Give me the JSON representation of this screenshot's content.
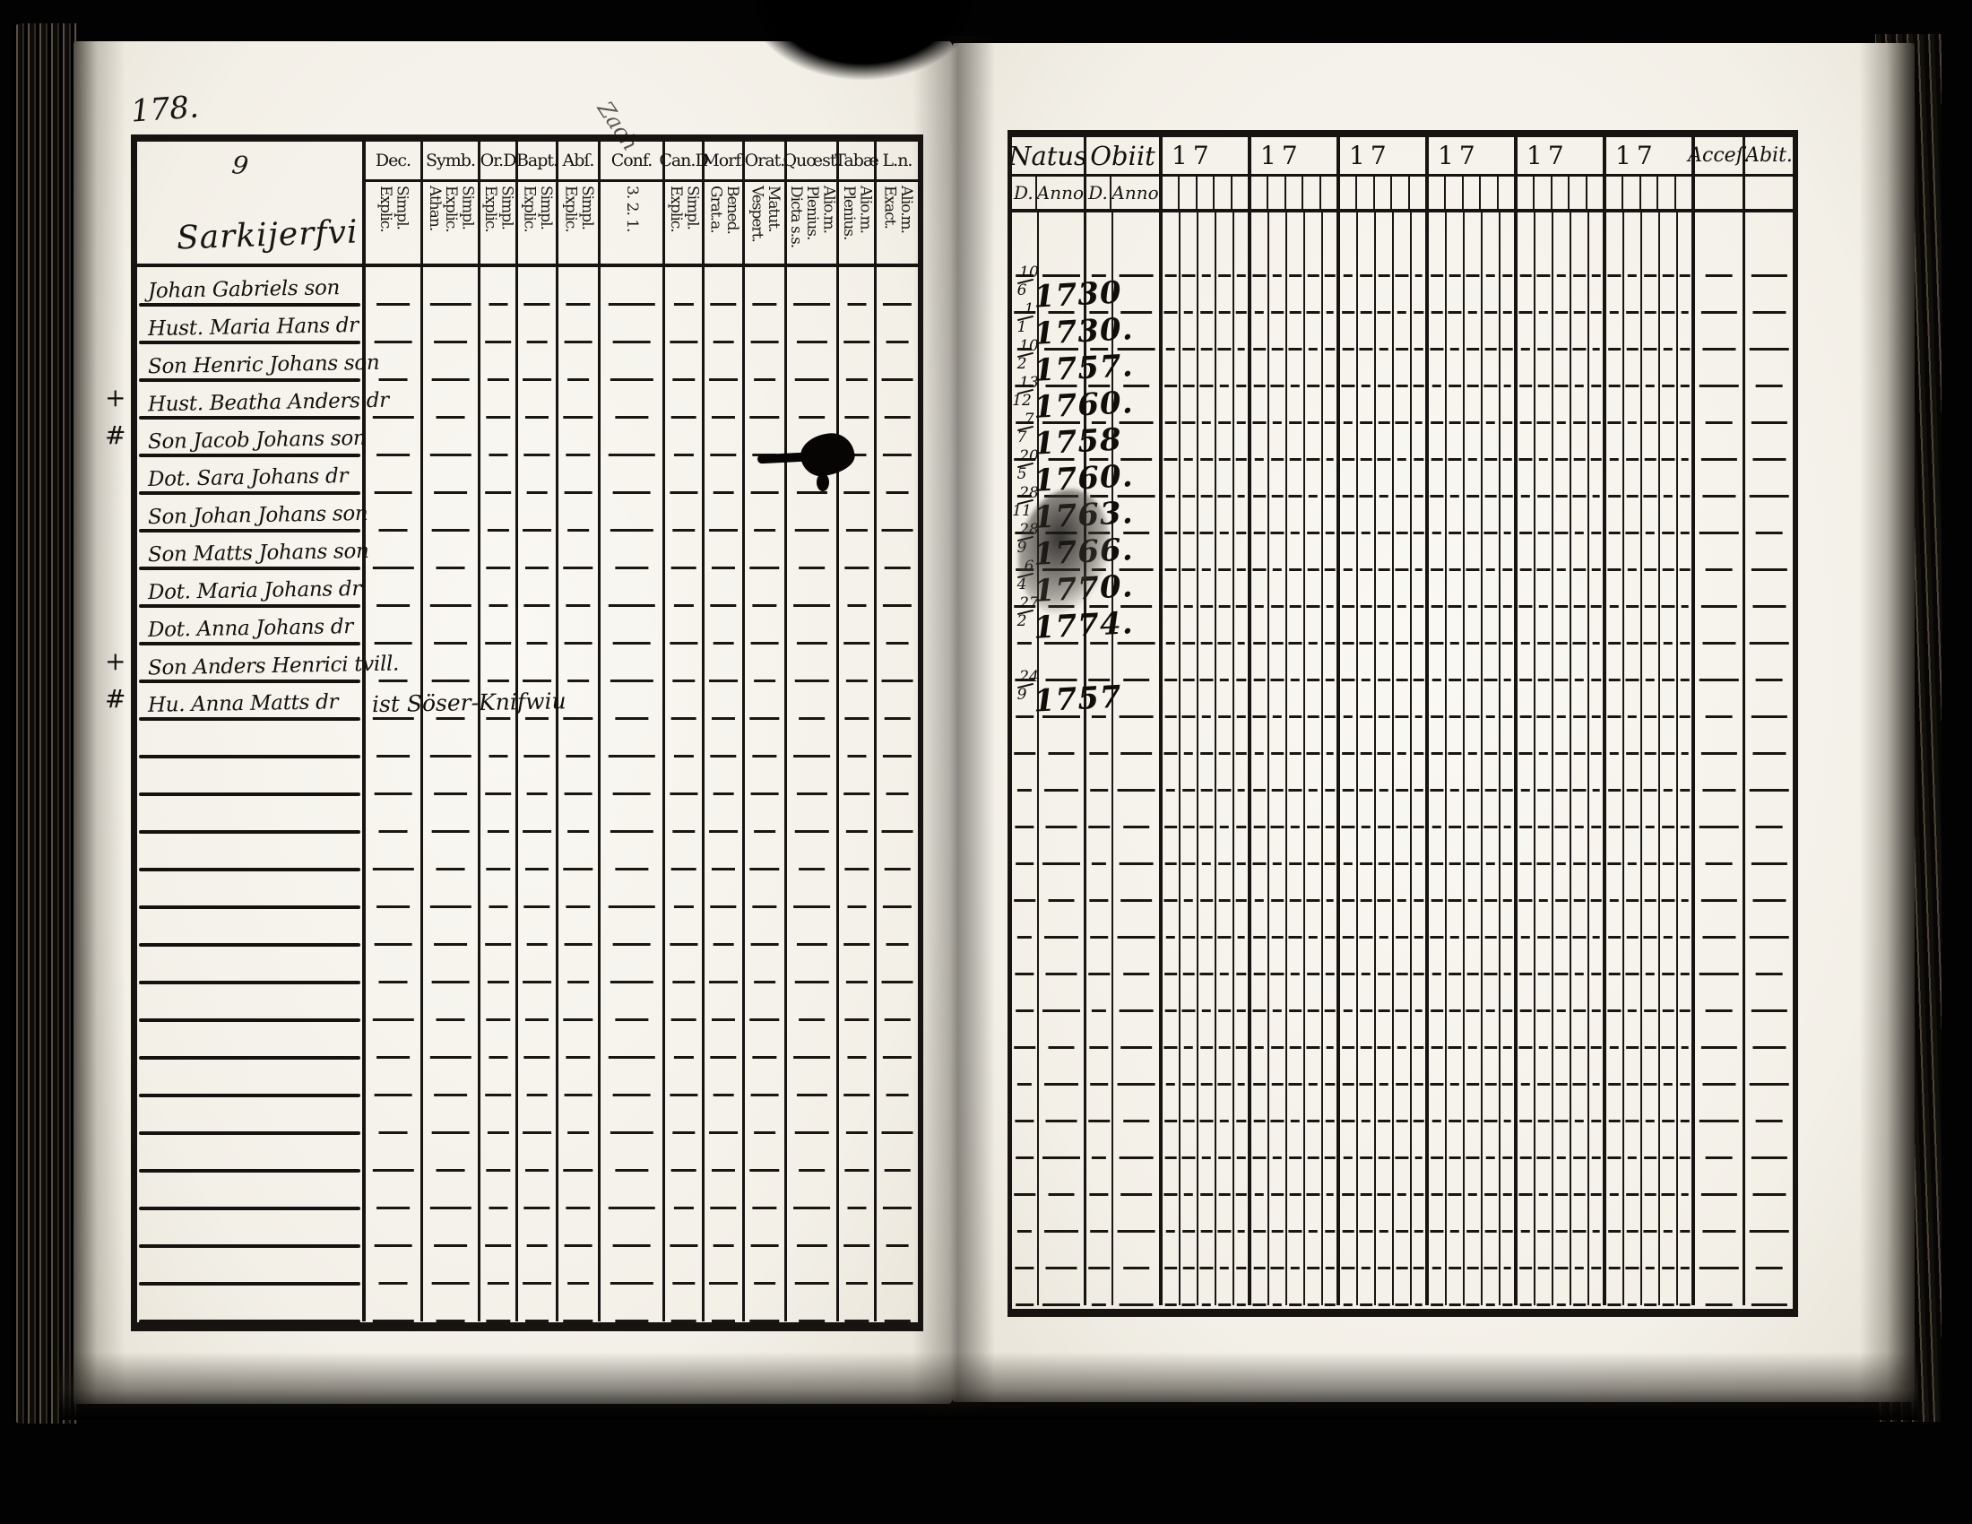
{
  "left_page": {
    "page_number": "178.",
    "group_numeral": "9",
    "place_name": "Sarkijerfvi",
    "stray_note": "Zach",
    "columns": [
      {
        "label": "Dec.",
        "vertical": [
          "Explic.",
          "Simpl."
        ]
      },
      {
        "label": "Symb.",
        "vertical": [
          "Athan.",
          "Explic.",
          "Simpl."
        ]
      },
      {
        "label": "Or.D",
        "vertical": [
          "Explic.",
          "Simpl."
        ]
      },
      {
        "label": "Bapt.",
        "vertical": [
          "Explic.",
          "Simpl."
        ]
      },
      {
        "label": "Abſ.",
        "vertical": [
          "Explic.",
          "Simpl."
        ]
      },
      {
        "label": "Conf.",
        "vertical": [
          "3. 2. 1."
        ]
      },
      {
        "label": "Can.D",
        "vertical": [
          "Explic.",
          "Simpl."
        ]
      },
      {
        "label": "Morf.",
        "vertical": [
          "Grat.a.",
          "Bened."
        ]
      },
      {
        "label": "Orat.",
        "vertical": [
          "Vespert.",
          "Matut."
        ]
      },
      {
        "label": "Quœst.",
        "vertical": [
          "Dicta s.s.",
          "Plenius.",
          "Alio.m."
        ]
      },
      {
        "label": "Tabæ",
        "vertical": [
          "Plenius.",
          "Alio.m."
        ]
      },
      {
        "label": "L.n.",
        "vertical": [
          "Exact.",
          "Alio.m."
        ]
      }
    ],
    "entries": [
      {
        "mark": "",
        "name": "Johan Gabriels son"
      },
      {
        "mark": "",
        "name": "Hust. Maria Hans dr"
      },
      {
        "mark": "",
        "name": "Son Henric Johans son"
      },
      {
        "mark": "+",
        "name": "Hust. Beatha Anders dr"
      },
      {
        "mark": "#",
        "name": "Son Jacob Johans son"
      },
      {
        "mark": "",
        "name": "Dot. Sara Johans dr"
      },
      {
        "mark": "",
        "name": "Son Johan Johans son"
      },
      {
        "mark": "",
        "name": "Son Matts Johans son"
      },
      {
        "mark": "",
        "name": "Dot. Maria Johans dr"
      },
      {
        "mark": "",
        "name": "Dot. Anna Johans dr"
      },
      {
        "mark": "+",
        "name": "Son Anders Henrici tvill."
      },
      {
        "mark": "#",
        "name": "Hu. Anna Matts dr",
        "note": "ist Söser-Knifwiu"
      }
    ],
    "total_rows": 28
  },
  "right_page": {
    "natus": {
      "label": "Natus",
      "sub": [
        "D.",
        "Anno"
      ]
    },
    "obiit": {
      "label": "Obiit",
      "sub": [
        "D.",
        "Anno"
      ]
    },
    "year_prefix": "17",
    "year_group_count": 6,
    "acces_label": "Acceſ.",
    "abit_label": "Abit.",
    "entries": [
      {
        "row": 1,
        "day": "10",
        "month": "6",
        "anno": "1730"
      },
      {
        "row": 2,
        "day": "1",
        "month": "1",
        "anno": "1730."
      },
      {
        "row": 3,
        "day": "10",
        "month": "2",
        "anno": "1757."
      },
      {
        "row": 4,
        "day": "13",
        "month": "12",
        "anno": "1760."
      },
      {
        "row": 5,
        "day": "7",
        "month": "7",
        "anno": "1758"
      },
      {
        "row": 6,
        "day": "20",
        "month": "5",
        "anno": "1760."
      },
      {
        "row": 7,
        "day": "28",
        "month": "11",
        "anno": "1763."
      },
      {
        "row": 8,
        "day": "28",
        "month": "9",
        "anno": "1766."
      },
      {
        "row": 9,
        "day": "6",
        "month": "4",
        "anno": "1770."
      },
      {
        "row": 10,
        "day": "27",
        "month": "2",
        "anno": "1774."
      },
      {
        "row": 12,
        "day": "24",
        "month": "9",
        "anno": "1757"
      }
    ],
    "total_rows": 28
  }
}
